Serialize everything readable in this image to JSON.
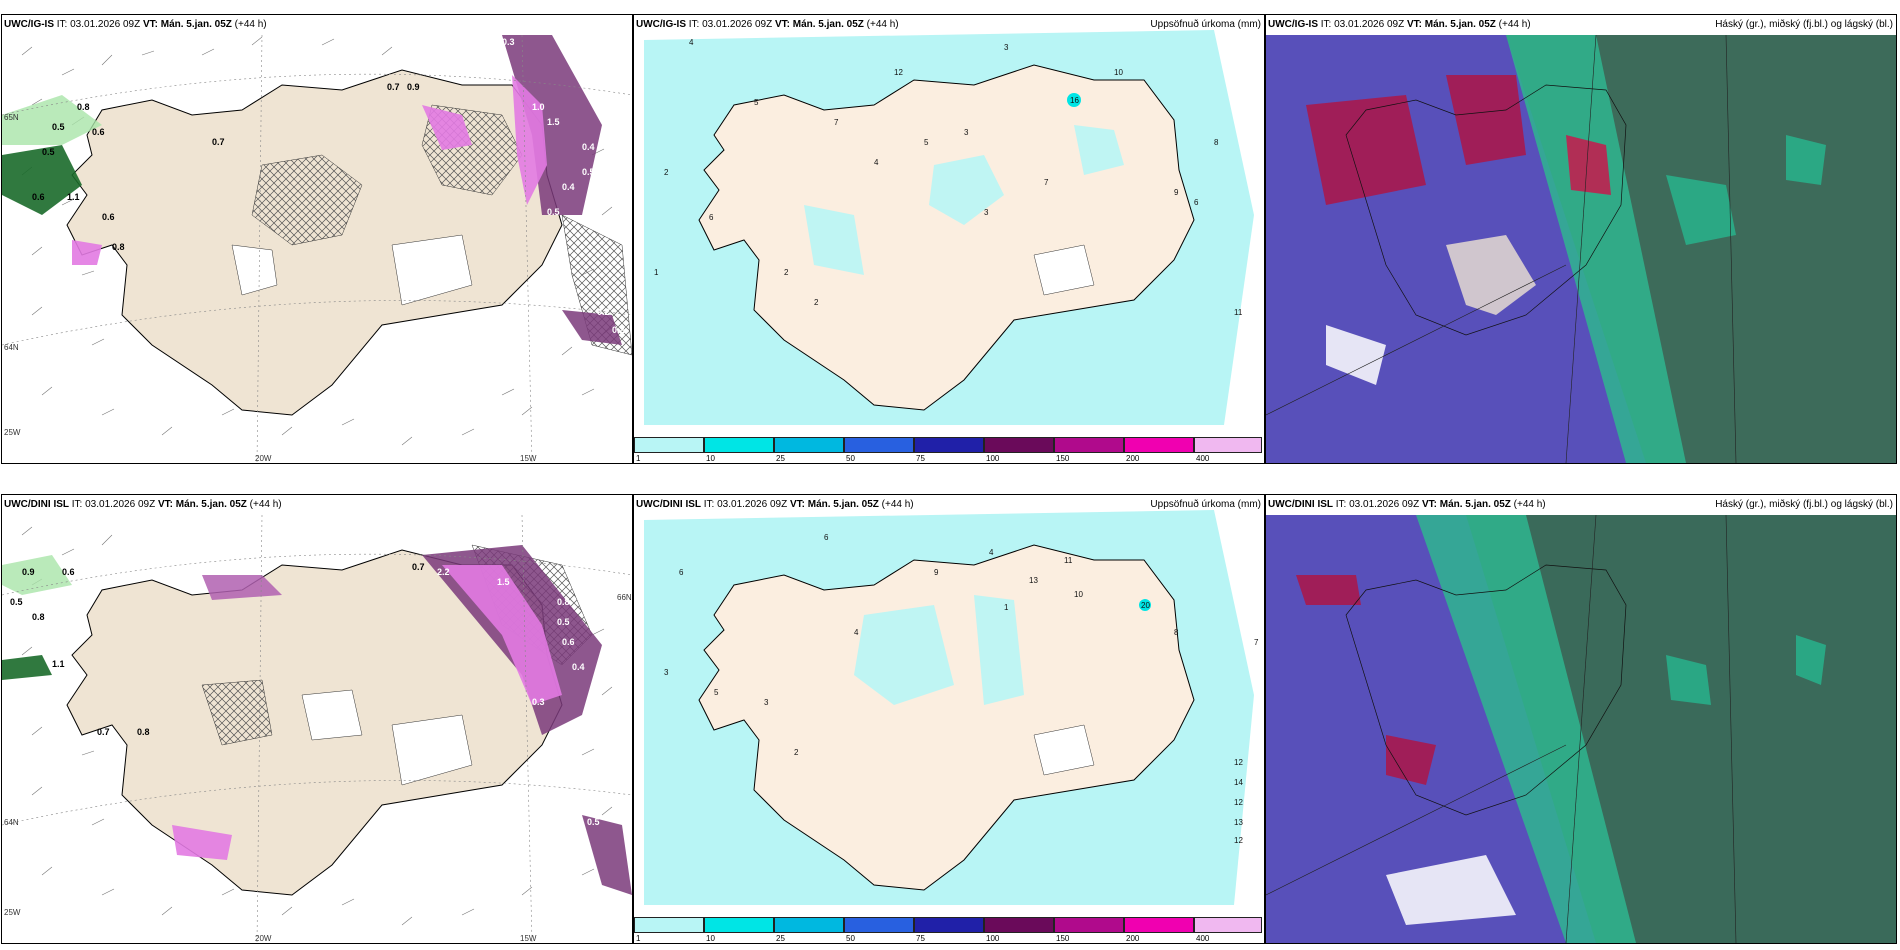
{
  "rows": [
    {
      "model": "UWC/IG-IS",
      "it_label": "IT: 03.01.2026 09Z",
      "vt_label": "VT: Mán. 5.jan. 05Z",
      "lead": "(+44 h)",
      "precip_title": "Uppsöfnuð úrkoma (mm)",
      "cloud_title": "Háský (gr.), miðský (fj.bl.) og lágský (bl.)",
      "lat_labels": [
        "65N",
        "64N",
        "25W"
      ],
      "lon_labels": [
        "20W",
        "15W"
      ],
      "snow_values": [
        "0.3",
        "1.0",
        "1.5",
        "0.4",
        "0.5",
        "0.4",
        "0.5",
        "0.7",
        "0.9",
        "0.5",
        "0.8",
        "0.7",
        "0.6",
        "1.1",
        "0.6",
        "0.8",
        "0.5",
        "0.6",
        "0.2",
        "0.2"
      ],
      "precip_values": [
        "4",
        "12",
        "3",
        "8",
        "16",
        "10",
        "5",
        "2",
        "7",
        "6",
        "3",
        "11",
        "9",
        "1",
        "2",
        "4",
        "5",
        "6",
        "3",
        "2",
        "7"
      ]
    },
    {
      "model": "UWC/DINI ISL",
      "it_label": "IT: 03.01.2026 09Z",
      "vt_label": "VT: Mán. 5.jan. 05Z",
      "lead": "(+44 h)",
      "precip_title": "Uppsöfnuð úrkoma (mm)",
      "cloud_title": "Háský (gr.), miðský (fj.bl.) og lágský (bl.)",
      "lat_labels": [
        "66N",
        "64N",
        "25W"
      ],
      "lon_labels": [
        "20W",
        "15W"
      ],
      "snow_values": [
        "2.2",
        "1.5",
        "0.8",
        "0.5",
        "0.6",
        "0.4",
        "0.3",
        "0.7",
        "0.8",
        "1.1",
        "0.9",
        "0.6",
        "0.7",
        "0.8",
        "0.5",
        "0.6",
        "0.3",
        "0.5"
      ],
      "precip_values": [
        "6",
        "4",
        "11",
        "10",
        "13",
        "20",
        "12",
        "14",
        "12",
        "13",
        "12",
        "3",
        "5",
        "7",
        "2",
        "8",
        "4",
        "9",
        "1",
        "6",
        "3"
      ]
    }
  ],
  "colorbar": {
    "ticks": [
      "1",
      "10",
      "25",
      "50",
      "75",
      "100",
      "150",
      "200",
      "400"
    ],
    "colors": [
      "#b8f5f5",
      "#00e5e5",
      "#00b8e0",
      "#2860e0",
      "#2020a8",
      "#6a0a5a",
      "#b00a8c",
      "#f000b0",
      "#f0b8f0"
    ]
  }
}
